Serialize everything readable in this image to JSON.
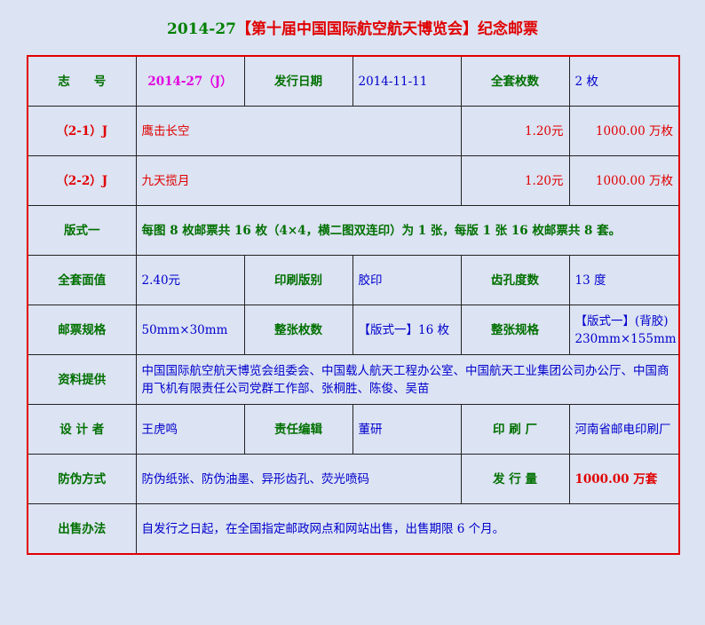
{
  "title": {
    "prefix": "2014-27",
    "name": "【第十届中国国际航空航天博览会】纪念邮票"
  },
  "rows": {
    "r1": {
      "l1": "志　　号",
      "v1": "2014-27（J）",
      "l2": "发行日期",
      "v2": "2014-11-11",
      "l3": "全套枚数",
      "v3": "2 枚"
    },
    "stamps": [
      {
        "id": "（2-1）J",
        "name": "鹰击长空",
        "price": "1.20元",
        "qty": "1000.00 万枚"
      },
      {
        "id": "（2-2）J",
        "name": "九天揽月",
        "price": "1.20元",
        "qty": "1000.00 万枚"
      }
    ],
    "format": {
      "label": "版式一",
      "value": "每图 8 枚邮票共 16 枚（4×4，横二图双连印）为 1 张，每版 1 张 16 枚邮票共 8 套。"
    },
    "r5": {
      "l1": "全套面值",
      "v1": "2.40元",
      "l2": "印刷版别",
      "v2": "胶印",
      "l3": "齿孔度数",
      "v3": "13 度"
    },
    "r6": {
      "l1": "邮票规格",
      "v1": "50mm×30mm",
      "l2": "整张枚数",
      "v2": "【版式一】16 枚",
      "l3": "整张规格",
      "v3": "【版式一】(背胶) 230mm×155mm"
    },
    "r7": {
      "l1": "资料提供",
      "v1": "中国国际航空航天博览会组委会、中国载人航天工程办公室、中国航天工业集团公司办公厅、中国商用飞机有限责任公司党群工作部、张桐胜、陈俊、吴苗"
    },
    "r8": {
      "l1": "设 计 者",
      "v1": "王虎鸣",
      "l2": "责任编辑",
      "v2": "董研",
      "l3": "印 刷 厂",
      "v3": "河南省邮电印刷厂"
    },
    "r9": {
      "l1": "防伪方式",
      "v1": "防伪纸张、防伪油墨、异形齿孔、荧光喷码",
      "l2": "发 行 量",
      "v2": "1000.00 万套"
    },
    "r10": {
      "l1": "出售办法",
      "v1": "自发行之日起，在全国指定邮政网点和网站出售，出售期限 6 个月。"
    }
  },
  "colors": {
    "title": "#008000",
    "accent": "#e00000",
    "text": "#0000cc",
    "background": "#dce3f3"
  }
}
